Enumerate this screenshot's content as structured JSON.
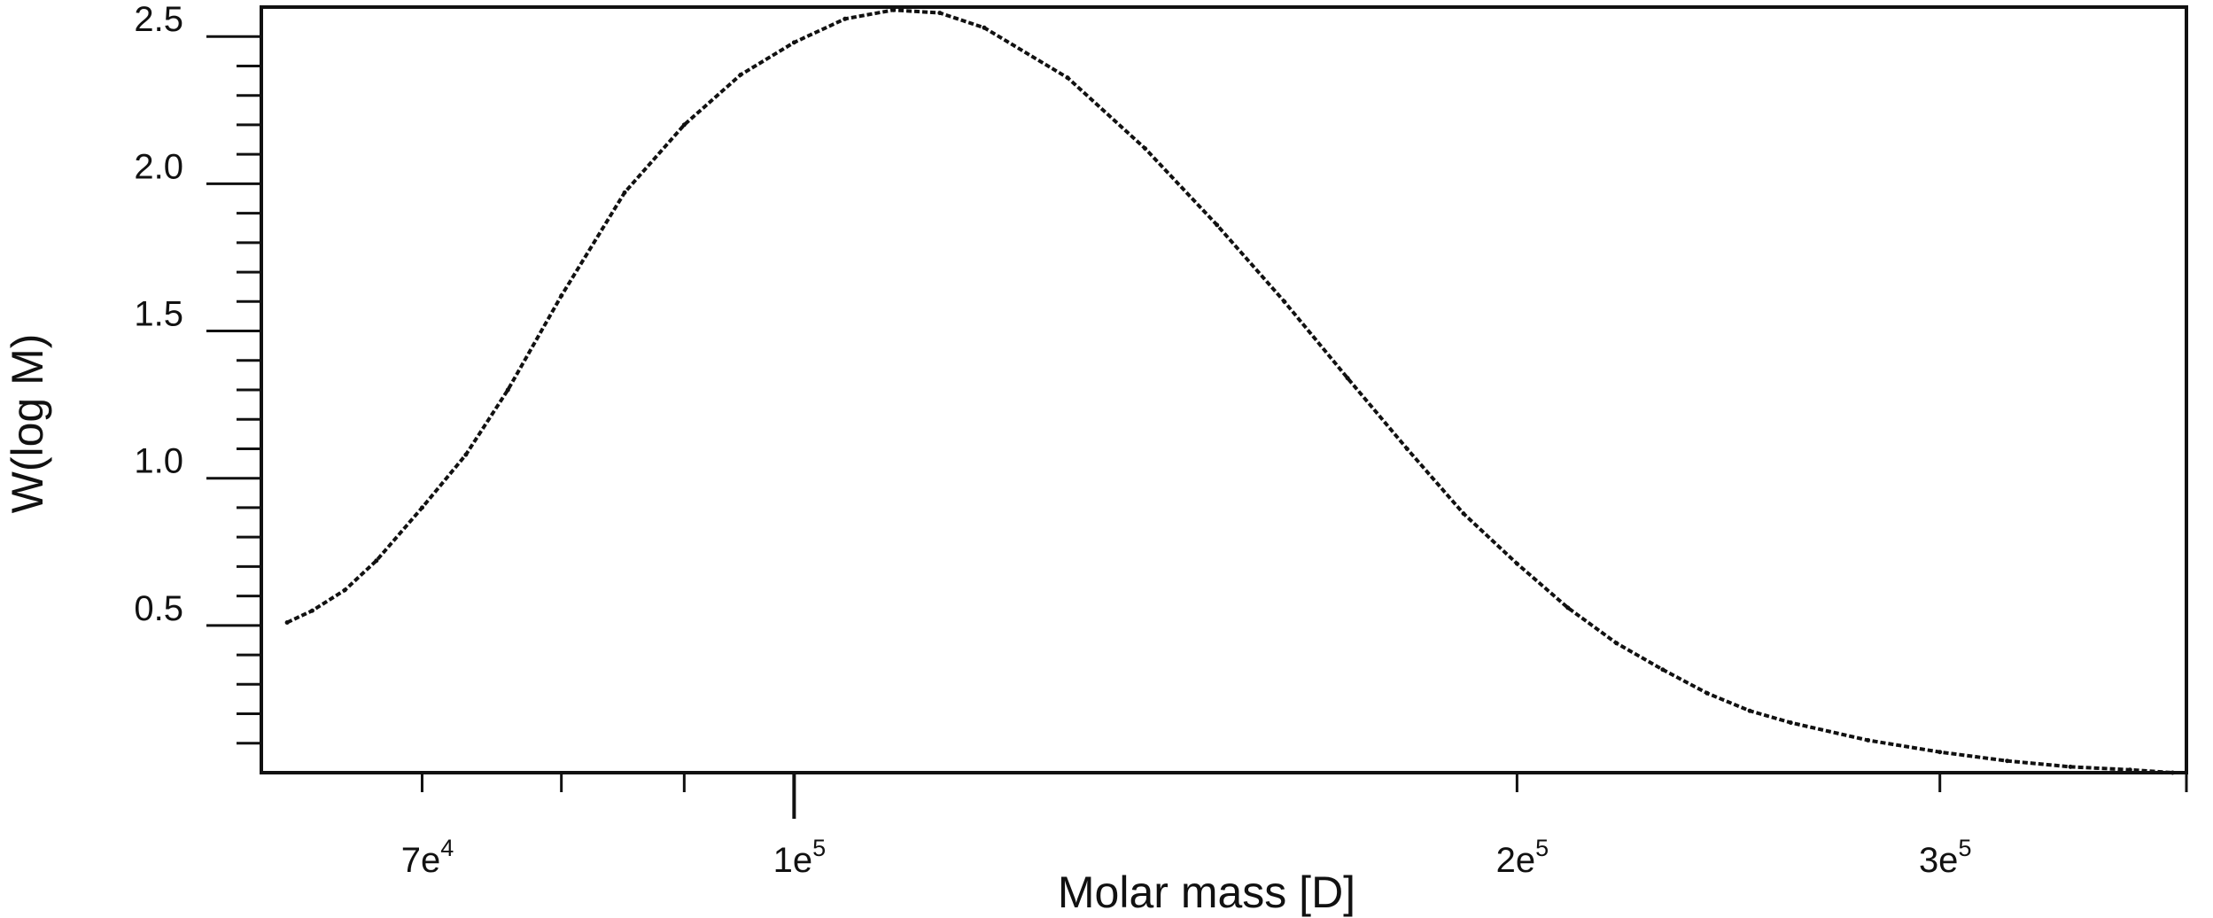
{
  "chart_data": {
    "type": "line",
    "title": "",
    "xlabel": "Molar mass [D]",
    "ylabel": "W(log M)",
    "x_scale": "log",
    "xlim": [
      60000,
      380000
    ],
    "ylim": [
      0,
      2.6
    ],
    "x_ticks": [
      {
        "value": 70000,
        "base": "7e",
        "exp": "4"
      },
      {
        "value": 100000,
        "base": "1e",
        "exp": "5"
      },
      {
        "value": 200000,
        "base": "2e",
        "exp": "5"
      },
      {
        "value": 300000,
        "base": "3e",
        "exp": "5"
      }
    ],
    "y_ticks": [
      {
        "value": 0.5,
        "label": "0.5"
      },
      {
        "value": 1.0,
        "label": "1.0"
      },
      {
        "value": 1.5,
        "label": "1.5"
      },
      {
        "value": 2.0,
        "label": "2.0"
      },
      {
        "value": 2.5,
        "label": "2.5"
      }
    ],
    "grid": false,
    "legend": "none",
    "colors": {
      "line": "#111111",
      "axes": "#111111",
      "background": "#ffffff"
    },
    "series": [
      {
        "points": [
          [
            61500,
            0.51
          ],
          [
            63000,
            0.55
          ],
          [
            65000,
            0.62
          ],
          [
            67000,
            0.72
          ],
          [
            70000,
            0.9
          ],
          [
            73000,
            1.08
          ],
          [
            76000,
            1.3
          ],
          [
            80000,
            1.62
          ],
          [
            85000,
            1.97
          ],
          [
            90000,
            2.2
          ],
          [
            95000,
            2.37
          ],
          [
            100000,
            2.48
          ],
          [
            105000,
            2.56
          ],
          [
            110000,
            2.59
          ],
          [
            115000,
            2.58
          ],
          [
            120000,
            2.53
          ],
          [
            130000,
            2.36
          ],
          [
            140000,
            2.12
          ],
          [
            150000,
            1.86
          ],
          [
            160000,
            1.6
          ],
          [
            170000,
            1.34
          ],
          [
            180000,
            1.1
          ],
          [
            190000,
            0.88
          ],
          [
            200000,
            0.71
          ],
          [
            210000,
            0.56
          ],
          [
            220000,
            0.44
          ],
          [
            230000,
            0.35
          ],
          [
            240000,
            0.27
          ],
          [
            250000,
            0.21
          ],
          [
            260000,
            0.17
          ],
          [
            280000,
            0.11
          ],
          [
            300000,
            0.07
          ],
          [
            320000,
            0.04
          ],
          [
            340000,
            0.02
          ],
          [
            360000,
            0.01
          ],
          [
            375000,
            0.0
          ]
        ]
      }
    ]
  }
}
